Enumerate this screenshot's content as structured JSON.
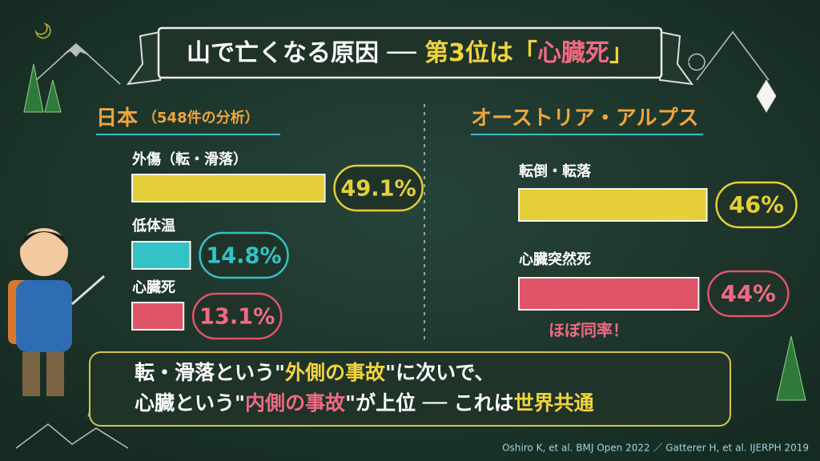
{
  "title": [
    {
      "text": "山で亡くなる原因 ── ",
      "color": "#ffffff"
    },
    {
      "text": "第3位は「",
      "color": "#f2d43c"
    },
    {
      "text": "心臓死",
      "color": "#f06a82"
    },
    {
      "text": "」",
      "color": "#f2d43c"
    }
  ],
  "chart_data": [
    {
      "type": "bar",
      "title": "日本",
      "subtitle": "（548件の分析）",
      "categories": [
        "外傷（転・滑落）",
        "低体温",
        "心臓死"
      ],
      "values": [
        49.1,
        14.8,
        13.1
      ],
      "value_labels": [
        "49.1%",
        "14.8%",
        "13.1%"
      ],
      "colors": [
        "#e4cf38",
        "#33c2c6",
        "#e05468"
      ]
    },
    {
      "type": "bar",
      "title": "オーストリア・アルプス",
      "categories": [
        "転倒・転落",
        "心臓突然死"
      ],
      "values": [
        46,
        44
      ],
      "value_labels": [
        "46%",
        "44%"
      ],
      "colors": [
        "#e4cf38",
        "#e05468"
      ],
      "annotation": "ほぼ同率！"
    }
  ],
  "summary": [
    [
      {
        "text": "転・滑落という\"",
        "color": "#ffffff"
      },
      {
        "text": "外側の事故",
        "color": "#f2d43c"
      },
      {
        "text": "\"に次いで、",
        "color": "#ffffff"
      }
    ],
    [
      {
        "text": "心臓という\"",
        "color": "#ffffff"
      },
      {
        "text": "内側の事故",
        "color": "#f06a82"
      },
      {
        "text": "\"が上位 ── これは",
        "color": "#ffffff"
      },
      {
        "text": "世界共通",
        "color": "#f2d43c"
      }
    ]
  ],
  "citation": "Oshiro K, et al. BMJ Open 2022 ／ Gatterer H, et al. IJERPH 2019"
}
